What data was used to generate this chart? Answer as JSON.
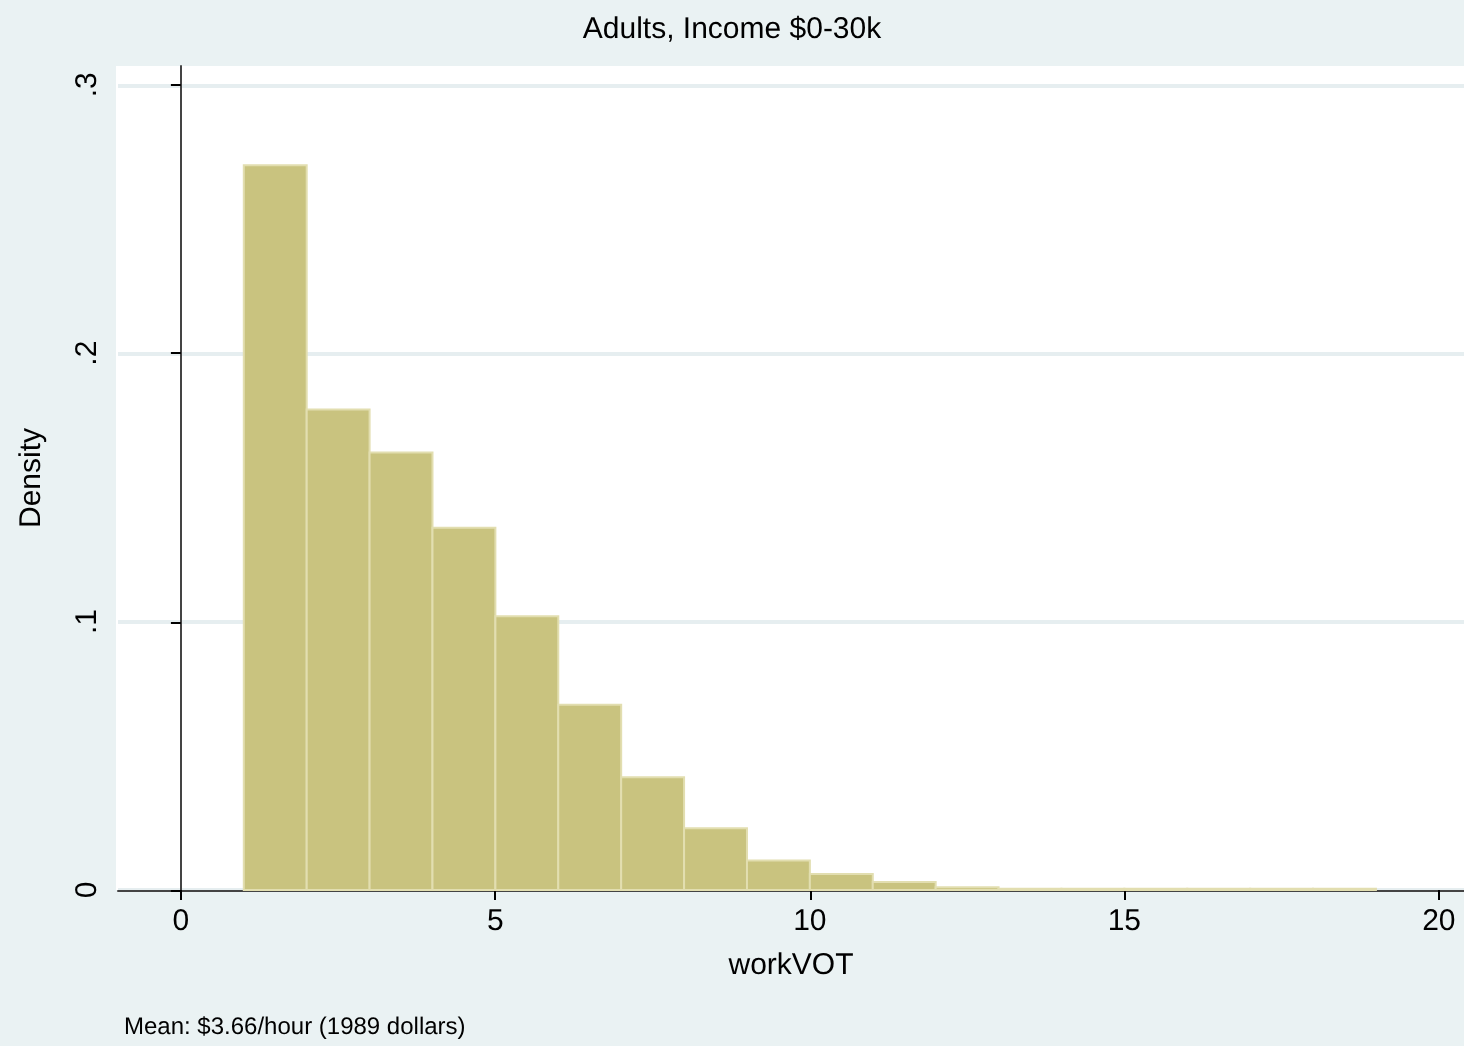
{
  "chart_data": {
    "type": "histogram",
    "title": "Adults, Income $0-30k",
    "xlabel": "workVOT",
    "ylabel": "Density",
    "bins": [
      1,
      2,
      3,
      4,
      5,
      6,
      7,
      8,
      9,
      10,
      11,
      12,
      13,
      14,
      15,
      16,
      17,
      18,
      19
    ],
    "values": [
      0.27,
      0.179,
      0.163,
      0.135,
      0.102,
      0.069,
      0.042,
      0.023,
      0.011,
      0.006,
      0.003,
      0.001,
      0.0005,
      0.0005,
      0.0005,
      0.0005,
      0.0005,
      0.0005
    ],
    "color": "#c9c37f",
    "xlim": [
      -1,
      20.4
    ],
    "xticks": [
      0,
      5,
      10,
      15,
      20
    ],
    "ylim": [
      0,
      0.307
    ],
    "yticks": [
      {
        "value": 0,
        "label": "0"
      },
      {
        "value": 0.1,
        "label": ".1"
      },
      {
        "value": 0.2,
        "label": ".2"
      },
      {
        "value": 0.3,
        "label": ".3"
      }
    ],
    "grid": "y",
    "annotations": [
      "Mean: $3.66/hour (1989 dollars)"
    ]
  }
}
